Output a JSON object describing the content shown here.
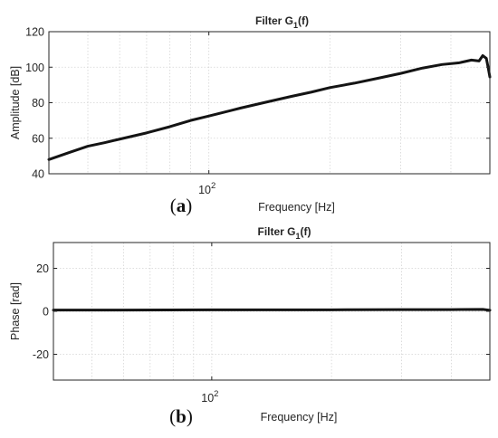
{
  "chart_data": [
    {
      "type": "line",
      "panel_label": "(a)",
      "title": "Filter G",
      "title_subscript": "1",
      "title_suffix": "(f)",
      "xlabel": "Frequency [Hz]",
      "ylabel": "Amplitude [dB]",
      "xscale": "log",
      "xlim": [
        40,
        500
      ],
      "ylim": [
        40,
        120
      ],
      "x_ticks": [
        {
          "value": 100,
          "base": "10",
          "exponent": "2"
        }
      ],
      "y_ticks": [
        40,
        60,
        80,
        100,
        120
      ],
      "grid": true,
      "line_color": "#141414",
      "series": [
        {
          "x": [
            40,
            45,
            50,
            55,
            60,
            70,
            80,
            90,
            100,
            120,
            140,
            160,
            180,
            200,
            230,
            260,
            300,
            340,
            380,
            420,
            450,
            470,
            480,
            490,
            495,
            500
          ],
          "y": [
            48,
            52,
            55.5,
            57.5,
            59.5,
            63,
            66.5,
            70,
            72.5,
            77,
            80.5,
            83.5,
            86,
            88.5,
            91,
            93.5,
            96.5,
            99.5,
            101.5,
            102.5,
            104,
            103.5,
            106.5,
            105,
            100,
            94.5
          ]
        }
      ]
    },
    {
      "type": "line",
      "panel_label": "(b)",
      "title": "Filter G",
      "title_subscript": "1",
      "title_suffix": "(f)",
      "xlabel": "Frequency [Hz]",
      "ylabel": "Phase [rad]",
      "xscale": "log",
      "xlim": [
        40,
        500
      ],
      "ylim": [
        -32,
        32
      ],
      "x_ticks": [
        {
          "value": 100,
          "base": "10",
          "exponent": "2"
        }
      ],
      "y_ticks": [
        -20,
        0,
        20
      ],
      "grid": true,
      "line_color": "#141414",
      "series": [
        {
          "x": [
            40,
            60,
            100,
            200,
            300,
            400,
            480,
            500
          ],
          "y": [
            0.6,
            0.6,
            0.7,
            0.7,
            0.8,
            0.8,
            0.9,
            0.5
          ]
        }
      ]
    }
  ]
}
